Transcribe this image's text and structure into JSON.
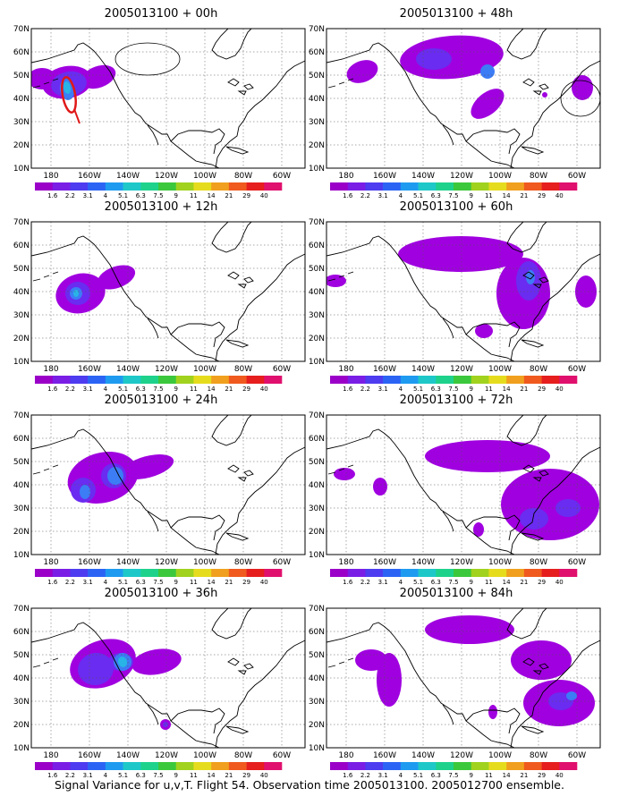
{
  "panels": [
    {
      "title": "2005013100 + 00h"
    },
    {
      "title": "2005013100 + 12h"
    },
    {
      "title": "2005013100 + 24h"
    },
    {
      "title": "2005013100 + 36h"
    },
    {
      "title": "2005013100 + 48h"
    },
    {
      "title": "2005013100 + 60h"
    },
    {
      "title": "2005013100 + 72h"
    },
    {
      "title": "2005013100 + 84h"
    }
  ],
  "map_axes": {
    "lat_labels": [
      "70N",
      "60N",
      "50N",
      "40N",
      "30N",
      "20N",
      "10N"
    ],
    "lon_labels": [
      "180",
      "160W",
      "140W",
      "120W",
      "100W",
      "80W",
      "60W"
    ]
  },
  "colorbar": {
    "labels": [
      "1.6",
      "2.2",
      "3.1",
      "4",
      "5.1",
      "6.3",
      "7.5",
      "9",
      "11",
      "14",
      "21",
      "29",
      "40"
    ],
    "colors": [
      "#9b00c8",
      "#7a1ee6",
      "#4d3cf0",
      "#2b64f5",
      "#1e9bf0",
      "#1ec8c8",
      "#1ed28c",
      "#3cc83c",
      "#a0d21e",
      "#e6dc1e",
      "#f0a01e",
      "#f05a1e",
      "#e61e1e",
      "#e0106e"
    ]
  },
  "variance_colors": {
    "level1": "#a000e0",
    "level2": "#6a2cf0",
    "level3": "#3c7cf5",
    "level4": "#28b4e6"
  },
  "footer": "Signal Variance for u,v,T. Flight 54. Observation time 2005013100. 2005012700 ensemble."
}
